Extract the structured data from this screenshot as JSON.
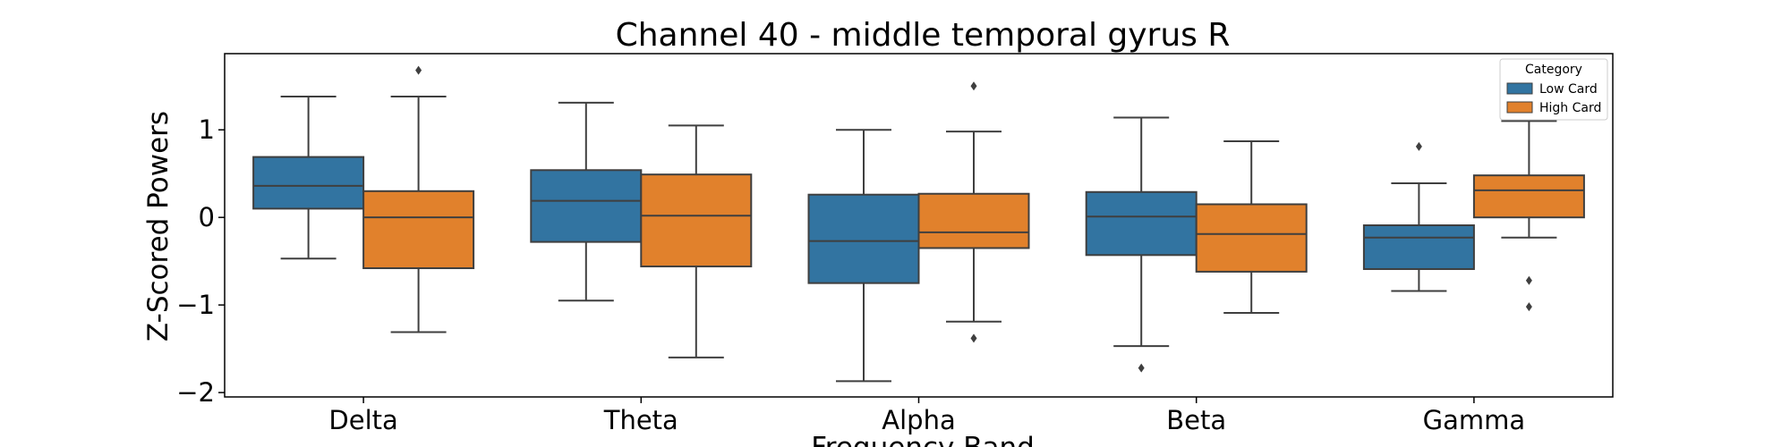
{
  "chart_data": {
    "type": "boxplot",
    "title": "Channel 40 - middle temporal gyrus R",
    "xlabel": "Frequency Band",
    "ylabel": "Z-Scored Powers",
    "categories": [
      "Delta",
      "Theta",
      "Alpha",
      "Beta",
      "Gamma"
    ],
    "ylim": [
      -2.05,
      1.87
    ],
    "yticks": [
      -2,
      -1,
      0,
      1
    ],
    "ytick_labels": [
      "−2",
      "−1",
      "0",
      "1"
    ],
    "grid": false,
    "legend": {
      "title": "Category",
      "placement": "top-right"
    },
    "series": [
      {
        "name": "Low Card",
        "color": "#3274a1",
        "boxes": [
          {
            "whislo": -0.47,
            "q1": 0.1,
            "med": 0.36,
            "q3": 0.69,
            "whishi": 1.38,
            "fliers": []
          },
          {
            "whislo": -0.95,
            "q1": -0.28,
            "med": 0.19,
            "q3": 0.54,
            "whishi": 1.31,
            "fliers": []
          },
          {
            "whislo": -1.87,
            "q1": -0.75,
            "med": -0.27,
            "q3": 0.26,
            "whishi": 1.0,
            "fliers": []
          },
          {
            "whislo": -1.47,
            "q1": -0.43,
            "med": 0.01,
            "q3": 0.29,
            "whishi": 1.14,
            "fliers": [
              -1.72
            ]
          },
          {
            "whislo": -0.84,
            "q1": -0.59,
            "med": -0.23,
            "q3": -0.09,
            "whishi": 0.39,
            "fliers": [
              0.81
            ]
          }
        ]
      },
      {
        "name": "High Card",
        "color": "#e1812c",
        "boxes": [
          {
            "whislo": -1.31,
            "q1": -0.58,
            "med": 0.0,
            "q3": 0.3,
            "whishi": 1.38,
            "fliers": [
              1.68
            ]
          },
          {
            "whislo": -1.6,
            "q1": -0.56,
            "med": 0.02,
            "q3": 0.49,
            "whishi": 1.05,
            "fliers": []
          },
          {
            "whislo": -1.19,
            "q1": -0.35,
            "med": -0.17,
            "q3": 0.27,
            "whishi": 0.98,
            "fliers": [
              1.5,
              -1.38
            ]
          },
          {
            "whislo": -1.09,
            "q1": -0.62,
            "med": -0.19,
            "q3": 0.15,
            "whishi": 0.87,
            "fliers": []
          },
          {
            "whislo": -0.23,
            "q1": 0.0,
            "med": 0.31,
            "q3": 0.48,
            "whishi": 1.1,
            "fliers": [
              -0.72,
              -1.02
            ]
          }
        ]
      }
    ]
  }
}
